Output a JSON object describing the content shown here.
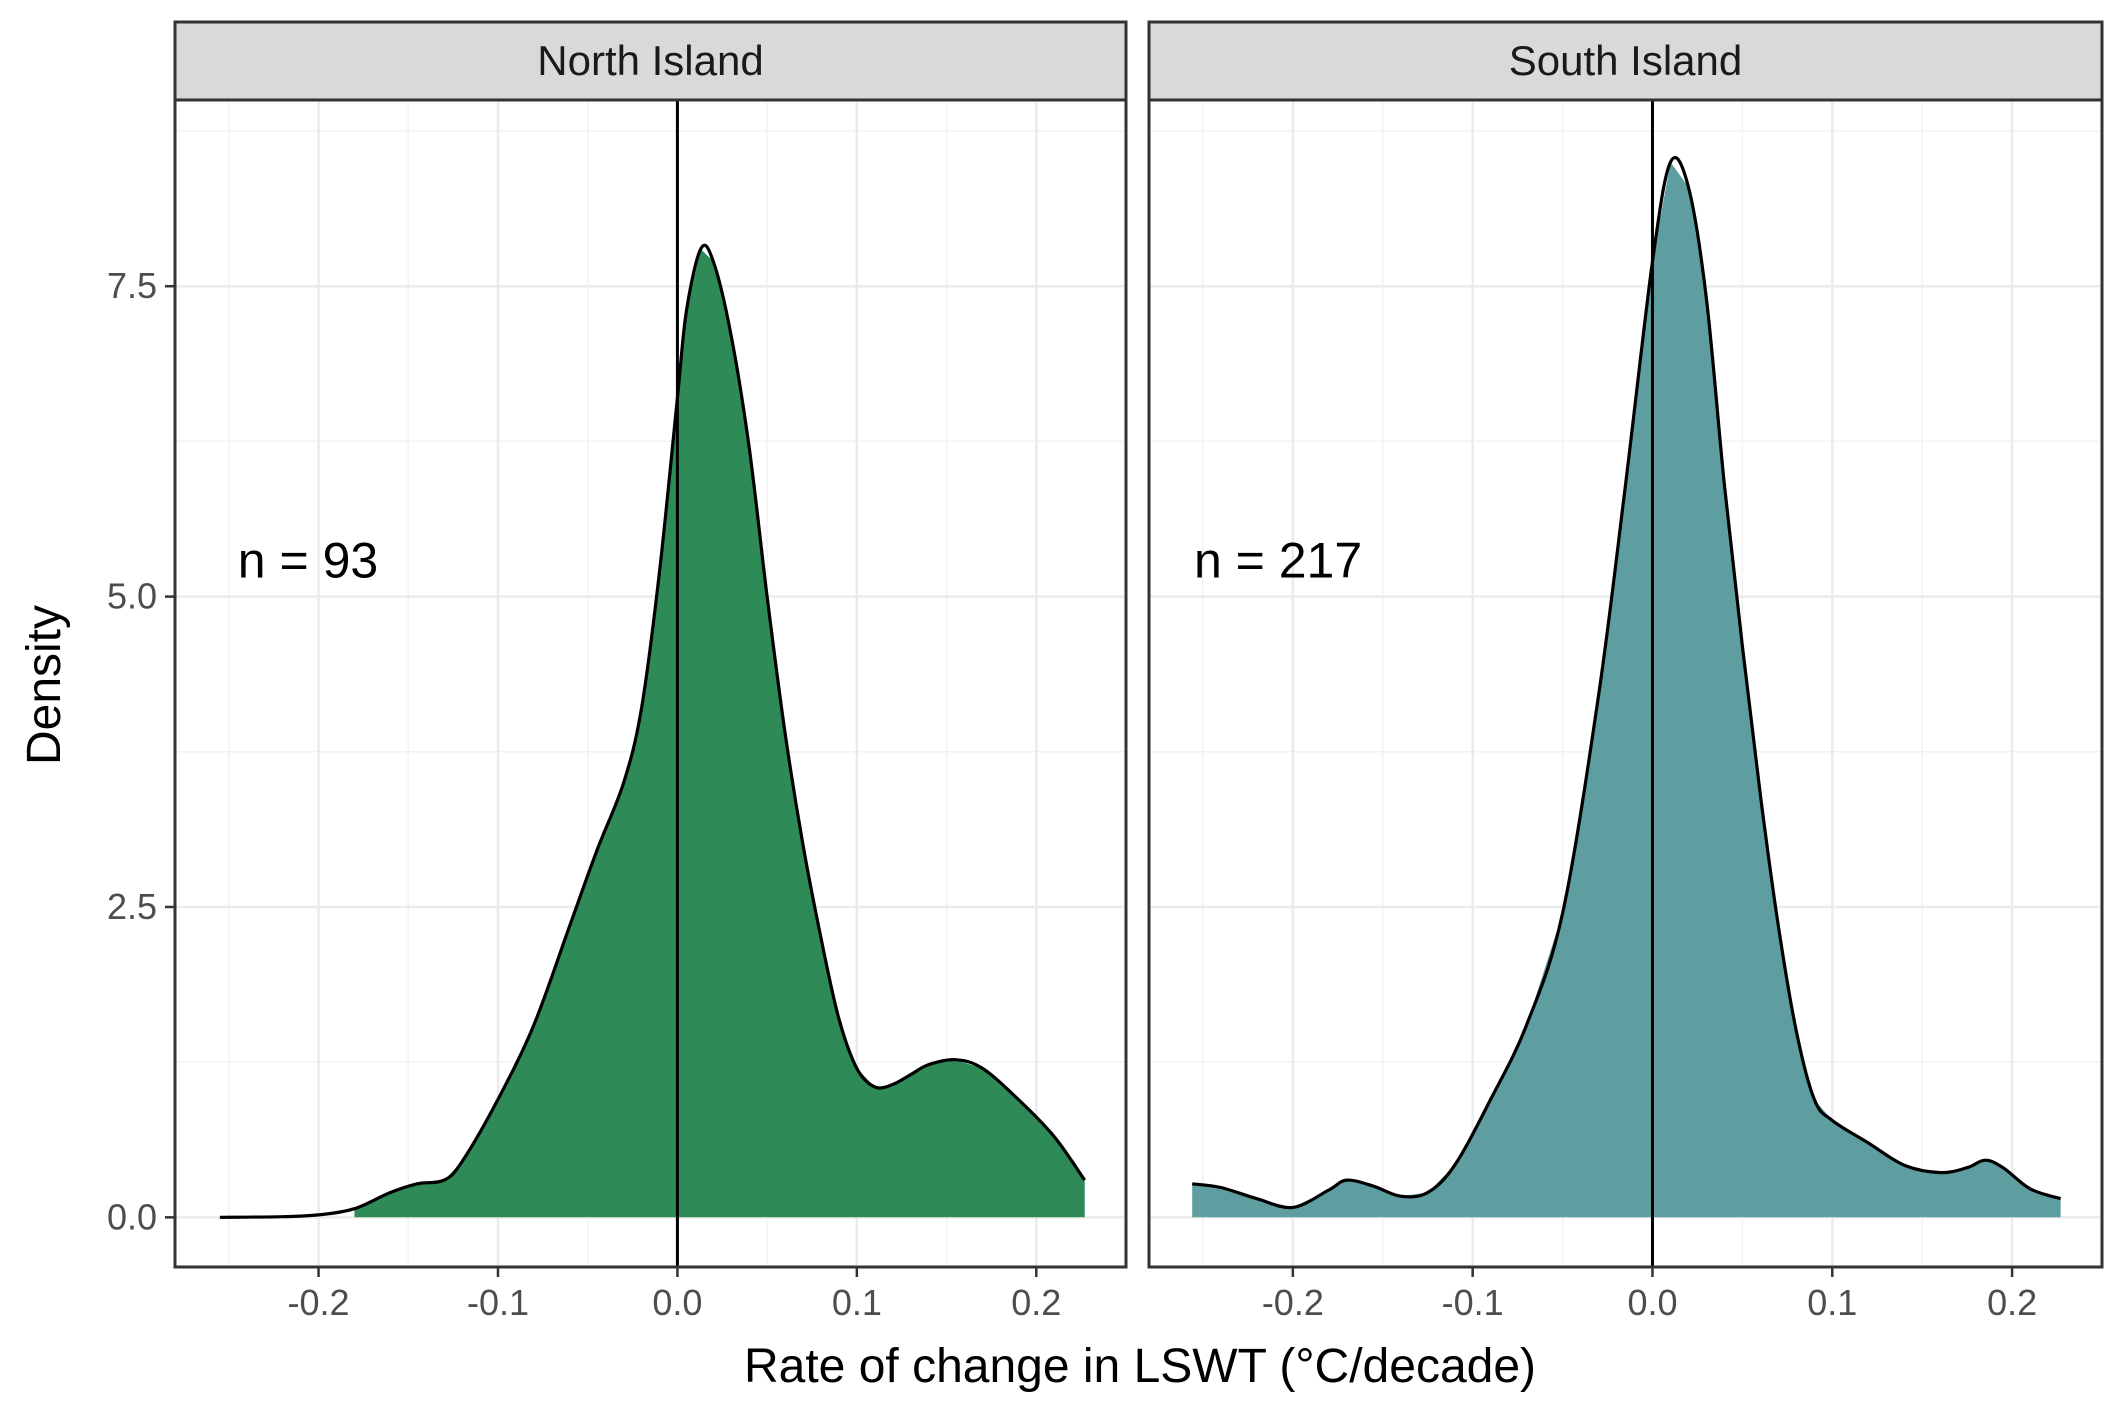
{
  "chart_data": {
    "type": "area",
    "subtype": "density",
    "title": "",
    "xlabel": "Rate of change in LSWT (°C/decade)",
    "ylabel": "Density",
    "xlim": [
      -0.28,
      0.25
    ],
    "ylim": [
      -0.4,
      9.0
    ],
    "x_ticks": [
      -0.2,
      -0.1,
      0.0,
      0.1,
      0.2
    ],
    "x_tick_labels": [
      "-0.2",
      "-0.1",
      "0.0",
      "0.1",
      "0.2"
    ],
    "y_ticks": [
      0.0,
      2.5,
      5.0,
      7.5
    ],
    "y_tick_labels": [
      "0.0",
      "2.5",
      "5.0",
      "7.5"
    ],
    "grid": true,
    "reference_line_x": 0.0,
    "panels": [
      {
        "name": "North Island",
        "annotation": "n = 93",
        "annotation_pos": [
          -0.245,
          5.3
        ],
        "color": "#2e8b57",
        "fill_start_x": -0.19,
        "points": [
          [
            -0.255,
            0.0
          ],
          [
            -0.22,
            0.005
          ],
          [
            -0.2,
            0.02
          ],
          [
            -0.18,
            0.07
          ],
          [
            -0.16,
            0.2
          ],
          [
            -0.145,
            0.27
          ],
          [
            -0.13,
            0.3
          ],
          [
            -0.12,
            0.45
          ],
          [
            -0.1,
            0.95
          ],
          [
            -0.08,
            1.55
          ],
          [
            -0.06,
            2.35
          ],
          [
            -0.045,
            2.95
          ],
          [
            -0.03,
            3.5
          ],
          [
            -0.02,
            4.1
          ],
          [
            -0.01,
            5.2
          ],
          [
            0.0,
            6.6
          ],
          [
            0.005,
            7.3
          ],
          [
            0.013,
            7.8
          ],
          [
            0.02,
            7.7
          ],
          [
            0.03,
            7.1
          ],
          [
            0.04,
            6.2
          ],
          [
            0.05,
            5.0
          ],
          [
            0.06,
            3.9
          ],
          [
            0.07,
            3.0
          ],
          [
            0.08,
            2.25
          ],
          [
            0.09,
            1.6
          ],
          [
            0.1,
            1.2
          ],
          [
            0.11,
            1.05
          ],
          [
            0.12,
            1.07
          ],
          [
            0.13,
            1.15
          ],
          [
            0.14,
            1.23
          ],
          [
            0.155,
            1.27
          ],
          [
            0.17,
            1.2
          ],
          [
            0.19,
            0.95
          ],
          [
            0.21,
            0.65
          ],
          [
            0.227,
            0.3
          ]
        ]
      },
      {
        "name": "South Island",
        "annotation": "n = 217",
        "annotation_pos": [
          -0.255,
          5.3
        ],
        "color": "#5f9ea0",
        "fill_start_x": -0.256,
        "points": [
          [
            -0.256,
            0.27
          ],
          [
            -0.24,
            0.24
          ],
          [
            -0.22,
            0.15
          ],
          [
            -0.2,
            0.08
          ],
          [
            -0.18,
            0.22
          ],
          [
            -0.17,
            0.3
          ],
          [
            -0.155,
            0.25
          ],
          [
            -0.14,
            0.17
          ],
          [
            -0.125,
            0.2
          ],
          [
            -0.11,
            0.42
          ],
          [
            -0.09,
            0.95
          ],
          [
            -0.07,
            1.55
          ],
          [
            -0.05,
            2.45
          ],
          [
            -0.03,
            4.2
          ],
          [
            -0.015,
            5.9
          ],
          [
            0.0,
            7.7
          ],
          [
            0.01,
            8.5
          ],
          [
            0.02,
            8.3
          ],
          [
            0.03,
            7.4
          ],
          [
            0.04,
            5.9
          ],
          [
            0.05,
            4.6
          ],
          [
            0.06,
            3.4
          ],
          [
            0.07,
            2.35
          ],
          [
            0.08,
            1.5
          ],
          [
            0.09,
            0.95
          ],
          [
            0.1,
            0.78
          ],
          [
            0.12,
            0.6
          ],
          [
            0.14,
            0.42
          ],
          [
            0.16,
            0.36
          ],
          [
            0.175,
            0.4
          ],
          [
            0.185,
            0.46
          ],
          [
            0.195,
            0.4
          ],
          [
            0.21,
            0.23
          ],
          [
            0.227,
            0.15
          ]
        ]
      }
    ]
  }
}
